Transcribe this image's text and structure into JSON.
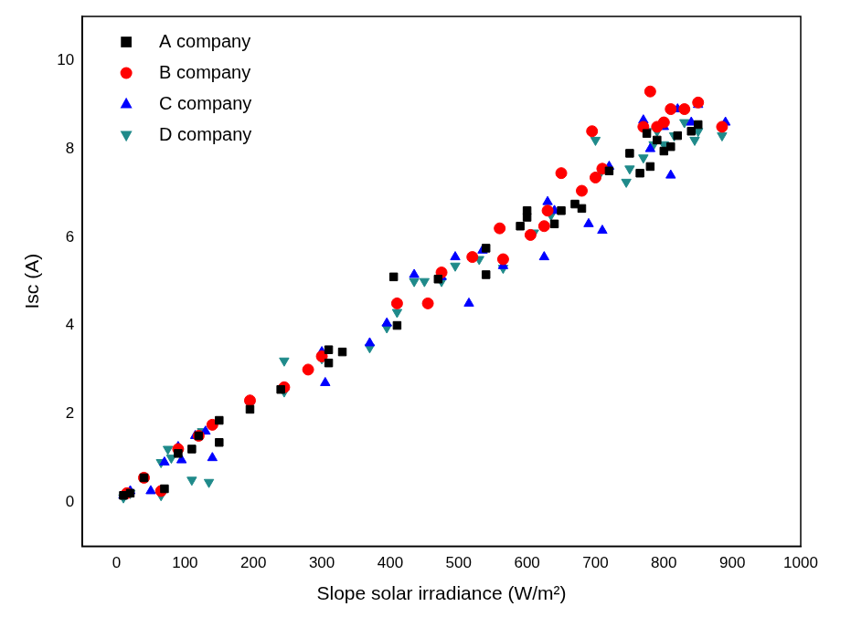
{
  "chart_data": {
    "type": "scatter",
    "x_label": "Slope solar irradiance (W/m²)",
    "y_label": "Isc (A)",
    "xlim": [
      -50,
      1000
    ],
    "xticks": [
      0,
      100,
      200,
      300,
      400,
      500,
      600,
      700,
      800,
      900,
      1000
    ],
    "ylim": [
      -1,
      11
    ],
    "yticks": [
      0,
      2,
      4,
      6,
      8,
      10
    ],
    "grid": false,
    "legend": "top-left",
    "series": [
      {
        "name": "A company",
        "color": "#000000",
        "marker": "square",
        "x": [
          10,
          20,
          40,
          70,
          90,
          110,
          120,
          150,
          150,
          195,
          240,
          310,
          310,
          330,
          405,
          410,
          470,
          540,
          540,
          590,
          600,
          600,
          640,
          650,
          670,
          680,
          720,
          750,
          765,
          775,
          780,
          790,
          800,
          810,
          820,
          840,
          850
        ],
        "values": [
          0.15,
          0.2,
          0.55,
          0.3,
          1.1,
          1.2,
          1.5,
          1.85,
          1.35,
          2.1,
          2.55,
          3.45,
          3.15,
          3.4,
          5.1,
          4.0,
          5.05,
          5.75,
          5.15,
          6.25,
          6.6,
          6.45,
          6.3,
          6.6,
          6.75,
          6.65,
          7.5,
          7.9,
          7.45,
          8.35,
          7.6,
          8.2,
          7.95,
          8.05,
          8.3,
          8.4,
          8.55
        ]
      },
      {
        "name": "B company",
        "color": "#ff0000",
        "marker": "circle",
        "x": [
          15,
          40,
          65,
          90,
          120,
          140,
          195,
          245,
          280,
          300,
          410,
          455,
          475,
          520,
          560,
          565,
          605,
          625,
          630,
          650,
          680,
          695,
          700,
          710,
          770,
          780,
          790,
          800,
          810,
          830,
          850,
          885
        ],
        "values": [
          0.2,
          0.55,
          0.25,
          1.2,
          1.5,
          1.75,
          2.3,
          2.6,
          3.0,
          3.3,
          4.5,
          4.5,
          5.2,
          5.55,
          6.2,
          5.5,
          6.05,
          6.25,
          6.6,
          7.45,
          7.05,
          8.4,
          7.35,
          7.55,
          8.5,
          9.3,
          8.5,
          8.6,
          8.9,
          8.9,
          9.05,
          8.5
        ]
      },
      {
        "name": "C company",
        "color": "#0000ff",
        "marker": "triangle",
        "x": [
          10,
          20,
          50,
          70,
          90,
          95,
          115,
          130,
          140,
          195,
          245,
          300,
          305,
          370,
          395,
          410,
          435,
          475,
          495,
          515,
          535,
          565,
          625,
          630,
          640,
          690,
          710,
          720,
          770,
          780,
          800,
          810,
          820,
          840,
          850,
          890
        ],
        "values": [
          0.15,
          0.25,
          0.25,
          0.9,
          1.25,
          0.95,
          1.5,
          1.6,
          1.0,
          2.3,
          2.6,
          3.4,
          2.7,
          3.6,
          4.05,
          4.5,
          5.15,
          5.1,
          5.55,
          4.5,
          5.7,
          5.35,
          5.55,
          6.8,
          6.6,
          6.3,
          6.15,
          7.6,
          8.65,
          8.0,
          8.5,
          7.4,
          8.9,
          8.6,
          9.0,
          8.6
        ]
      },
      {
        "name": "D company",
        "color": "#1f8a8a",
        "marker": "triangle_down",
        "x": [
          10,
          20,
          65,
          65,
          75,
          80,
          90,
          110,
          125,
          135,
          195,
          245,
          245,
          300,
          370,
          395,
          410,
          435,
          450,
          475,
          495,
          530,
          565,
          610,
          635,
          700,
          705,
          745,
          750,
          770,
          775,
          785,
          790,
          800,
          815,
          830,
          845,
          850,
          885
        ],
        "values": [
          0.1,
          0.2,
          0.9,
          0.15,
          1.2,
          1.0,
          1.15,
          0.5,
          1.6,
          0.45,
          2.2,
          3.2,
          2.5,
          3.25,
          3.5,
          3.95,
          4.3,
          5.0,
          5.0,
          5.0,
          5.35,
          5.5,
          5.3,
          6.1,
          6.5,
          8.2,
          7.4,
          7.25,
          7.55,
          7.8,
          8.4,
          8.1,
          8.4,
          8.1,
          8.3,
          8.6,
          8.2,
          8.4,
          8.3
        ]
      }
    ]
  }
}
